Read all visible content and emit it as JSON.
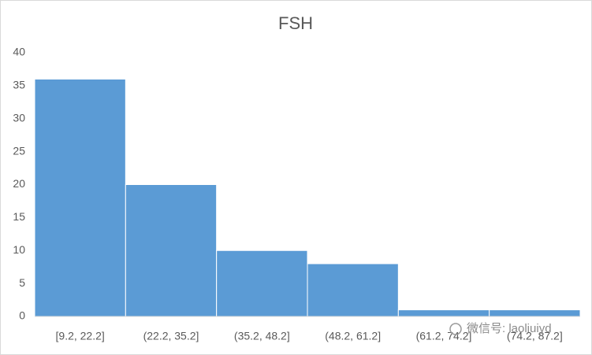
{
  "chart_data": {
    "type": "bar",
    "title": "FSH",
    "categories": [
      "[9.2, 22.2]",
      "(22.2, 35.2]",
      "(35.2, 48.2]",
      "(48.2, 61.2]",
      "(61.2, 74.2]",
      "(74.2, 87.2]"
    ],
    "values": [
      36,
      20,
      10,
      8,
      1,
      1
    ],
    "color": "#5b9bd5",
    "ylim": [
      0,
      40
    ],
    "yticks": [
      0,
      5,
      10,
      15,
      20,
      25,
      30,
      35,
      40
    ],
    "grid": false,
    "watermark": "微信号: laoliuiyd"
  }
}
